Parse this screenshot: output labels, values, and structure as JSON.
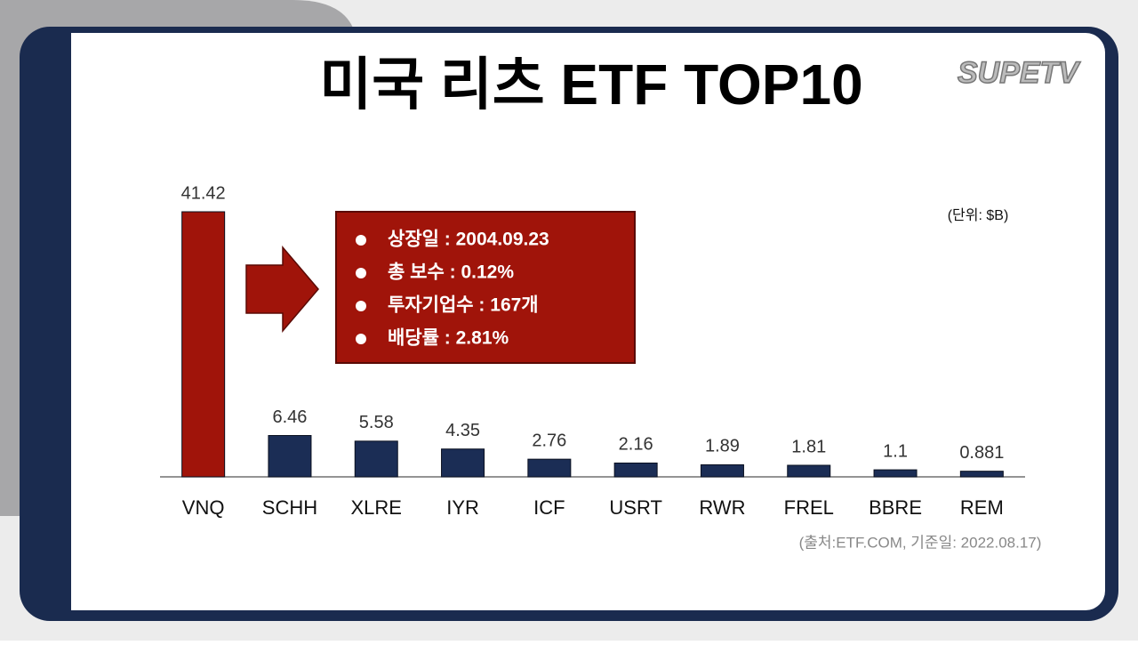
{
  "chart_data": {
    "type": "bar",
    "title": "미국 리츠 ETF TOP10",
    "unit_note": "(단위: $B)",
    "source_note": "(출처:ETF.COM, 기준일: 2022.08.17)",
    "logo": "SUPETV",
    "categories": [
      "VNQ",
      "SCHH",
      "XLRE",
      "IYR",
      "ICF",
      "USRT",
      "RWR",
      "FREL",
      "BBRE",
      "REM"
    ],
    "values": [
      41.42,
      6.46,
      5.58,
      4.35,
      2.76,
      2.16,
      1.89,
      1.81,
      1.1,
      0.881
    ],
    "colors": [
      "#a0140a",
      "#1b2d55",
      "#1b2d55",
      "#1b2d55",
      "#1b2d55",
      "#1b2d55",
      "#1b2d55",
      "#1b2d55",
      "#1b2d55",
      "#1b2d55"
    ],
    "callout": [
      "상장일 : 2004.09.23",
      "총 보수 : 0.12%",
      "투자기업수 : 167개",
      "배당률 : 2.81%"
    ]
  }
}
